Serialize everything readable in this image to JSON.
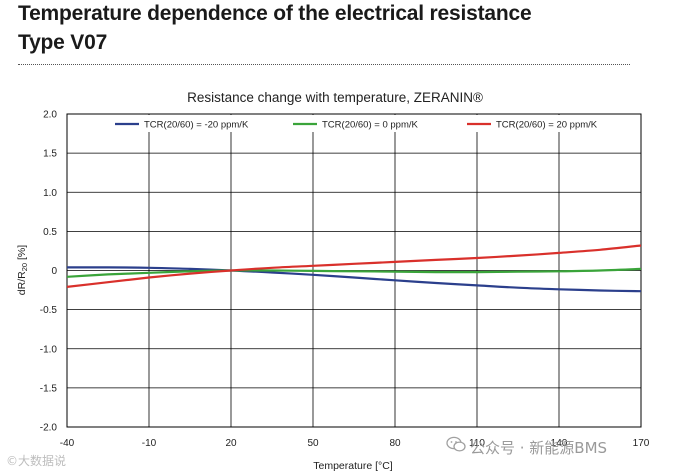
{
  "heading": {
    "line1": "Temperature dependence of the electrical resistance",
    "line2": "Type V07"
  },
  "watermarks": {
    "left": "©大数据说",
    "right": "公众号 · 新能源BMS"
  },
  "chart_data": {
    "type": "line",
    "title": "Resistance change with temperature, ZERANIN®",
    "xlabel": "Temperature [°C]",
    "ylabel_main": "dR/R",
    "ylabel_sub": "20",
    "ylabel_unit": " [%]",
    "xlim": [
      -40,
      170
    ],
    "ylim": [
      -2.0,
      2.0
    ],
    "xticks": [
      -40,
      -10,
      20,
      50,
      80,
      110,
      140,
      170
    ],
    "yticks": [
      2.0,
      1.5,
      1.0,
      0.5,
      0.0,
      -0.5,
      -1.0,
      -1.5,
      -2.0
    ],
    "ytick_labels": [
      "2.0",
      "1.5",
      "1.0",
      "0.5",
      "0",
      "-0.5",
      "-1.0",
      "-1.5",
      "-2.0"
    ],
    "grid": true,
    "legend_position": "top",
    "series": [
      {
        "name": "TCR(20/60) = -20 ppm/K",
        "color": "#2b3f8c",
        "x": [
          -40,
          -25,
          -10,
          5,
          20,
          35,
          50,
          65,
          80,
          95,
          110,
          125,
          140,
          155,
          170
        ],
        "y": [
          0.04,
          0.04,
          0.035,
          0.02,
          0.0,
          -0.025,
          -0.055,
          -0.09,
          -0.125,
          -0.16,
          -0.19,
          -0.22,
          -0.24,
          -0.255,
          -0.265
        ]
      },
      {
        "name": "TCR(20/60) = 0 ppm/K",
        "color": "#3aa43a",
        "x": [
          -40,
          -25,
          -10,
          5,
          20,
          35,
          50,
          65,
          80,
          95,
          110,
          125,
          140,
          155,
          170
        ],
        "y": [
          -0.08,
          -0.05,
          -0.03,
          -0.01,
          0.0,
          0.0,
          -0.005,
          -0.01,
          -0.015,
          -0.02,
          -0.02,
          -0.015,
          -0.01,
          0.0,
          0.02
        ]
      },
      {
        "name": "TCR(20/60) = 20 ppm/K",
        "color": "#d9302b",
        "x": [
          -40,
          -25,
          -10,
          5,
          20,
          35,
          50,
          65,
          80,
          95,
          110,
          125,
          140,
          155,
          170
        ],
        "y": [
          -0.21,
          -0.15,
          -0.09,
          -0.04,
          0.0,
          0.035,
          0.06,
          0.085,
          0.11,
          0.135,
          0.16,
          0.19,
          0.225,
          0.265,
          0.32
        ]
      }
    ]
  }
}
